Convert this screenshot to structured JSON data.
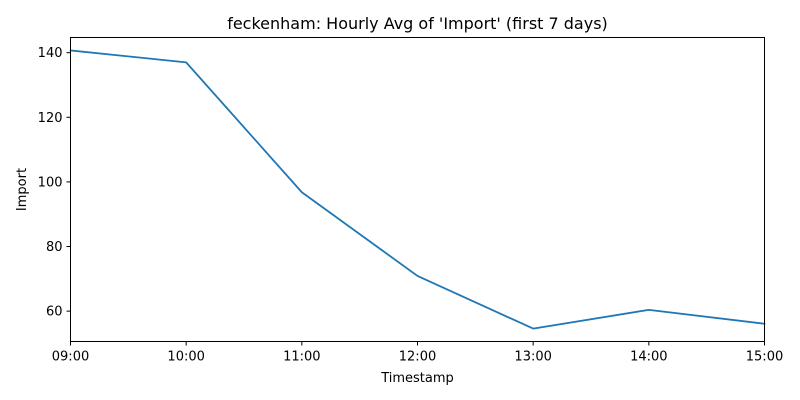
{
  "chart_data": {
    "type": "line",
    "title": "feckenham: Hourly Avg of 'Import' (first 7 days)",
    "xlabel": "Timestamp",
    "ylabel": "Import",
    "x": [
      "09:00",
      "10:00",
      "11:00",
      "12:00",
      "13:00",
      "14:00",
      "15:00"
    ],
    "y": [
      140.7,
      137.0,
      96.8,
      70.9,
      54.6,
      60.4,
      56.1
    ],
    "ylim": [
      50.6,
      144.7
    ],
    "yticks": [
      60,
      80,
      100,
      120,
      140
    ],
    "grid": false,
    "line_color": "#1f77b4"
  }
}
